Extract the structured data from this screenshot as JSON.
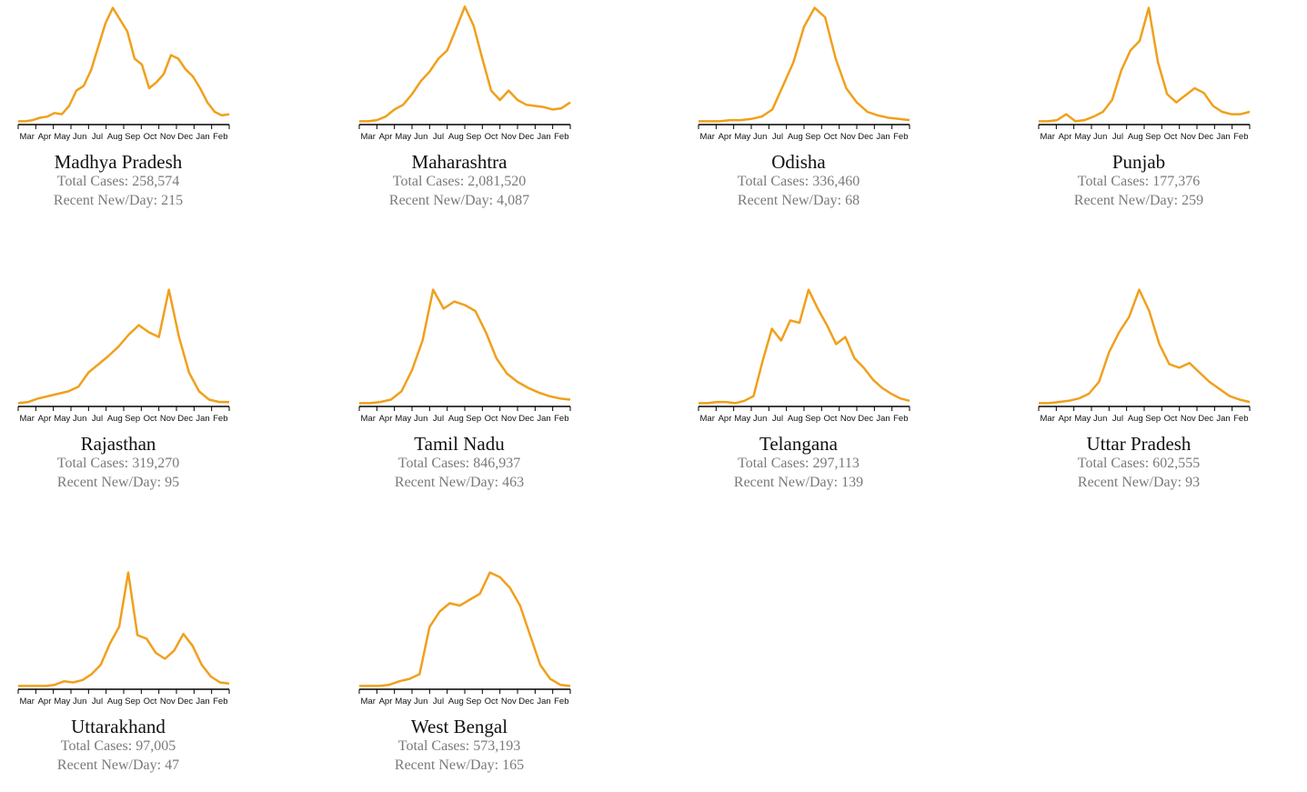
{
  "labels": {
    "total_prefix": "Total Cases: ",
    "recent_prefix": "Recent New/Day: "
  },
  "colors": {
    "line": "#f0a01c",
    "axis": "#000000",
    "label": "#7a7a7a"
  },
  "panels": [
    {
      "name": "Madhya Pradesh",
      "total": "Total Cases: 258,574",
      "recent": "Recent New/Day: 215"
    },
    {
      "name": "Maharashtra",
      "total": "Total Cases: 2,081,520",
      "recent": "Recent New/Day: 4,087"
    },
    {
      "name": "Odisha",
      "total": "Total Cases: 336,460",
      "recent": "Recent New/Day: 68"
    },
    {
      "name": "Punjab",
      "total": "Total Cases: 177,376",
      "recent": "Recent New/Day: 259"
    },
    {
      "name": "Rajasthan",
      "total": "Total Cases: 319,270",
      "recent": "Recent New/Day: 95"
    },
    {
      "name": "Tamil Nadu",
      "total": "Total Cases: 846,937",
      "recent": "Recent New/Day: 463"
    },
    {
      "name": "Telangana",
      "total": "Total Cases: 297,113",
      "recent": "Recent New/Day: 139"
    },
    {
      "name": "Uttar Pradesh",
      "total": "Total Cases: 602,555",
      "recent": "Recent New/Day: 93"
    },
    {
      "name": "Uttarakhand",
      "total": "Total Cases: 97,005",
      "recent": "Recent New/Day: 47"
    },
    {
      "name": "West Bengal",
      "total": "Total Cases: 573,193",
      "recent": "Recent New/Day: 165"
    }
  ],
  "chart_data": {
    "type": "line",
    "x_tick_labels": [
      "Mar",
      "Apr",
      "May",
      "Jun",
      "Jul",
      "Aug",
      "Sep",
      "Oct",
      "Nov",
      "Dec",
      "Jan",
      "Feb"
    ],
    "y_scale": "each panel normalized to its own peak",
    "series": [
      {
        "name": "Madhya Pradesh",
        "values": [
          0.02,
          0.02,
          0.03,
          0.05,
          0.06,
          0.09,
          0.08,
          0.15,
          0.28,
          0.32,
          0.45,
          0.65,
          0.85,
          0.98,
          0.88,
          0.78,
          0.55,
          0.5,
          0.3,
          0.35,
          0.42,
          0.58,
          0.55,
          0.46,
          0.4,
          0.3,
          0.18,
          0.1,
          0.07,
          0.08
        ]
      },
      {
        "name": "Maharashtra",
        "values": [
          0.02,
          0.02,
          0.03,
          0.06,
          0.12,
          0.16,
          0.25,
          0.36,
          0.44,
          0.55,
          0.62,
          0.8,
          0.99,
          0.83,
          0.55,
          0.28,
          0.2,
          0.28,
          0.2,
          0.16,
          0.15,
          0.14,
          0.12,
          0.13,
          0.18
        ]
      },
      {
        "name": "Odisha",
        "values": [
          0.02,
          0.02,
          0.02,
          0.03,
          0.03,
          0.04,
          0.06,
          0.12,
          0.32,
          0.52,
          0.82,
          0.98,
          0.9,
          0.55,
          0.3,
          0.18,
          0.1,
          0.07,
          0.05,
          0.04,
          0.03
        ]
      },
      {
        "name": "Punjab",
        "values": [
          0.02,
          0.02,
          0.03,
          0.08,
          0.02,
          0.03,
          0.06,
          0.1,
          0.2,
          0.45,
          0.62,
          0.7,
          0.98,
          0.52,
          0.25,
          0.18,
          0.24,
          0.3,
          0.26,
          0.15,
          0.1,
          0.08,
          0.08,
          0.1
        ]
      },
      {
        "name": "Rajasthan",
        "values": [
          0.02,
          0.03,
          0.06,
          0.08,
          0.1,
          0.12,
          0.16,
          0.28,
          0.35,
          0.42,
          0.5,
          0.6,
          0.68,
          0.62,
          0.58,
          0.98,
          0.58,
          0.28,
          0.12,
          0.05,
          0.03,
          0.03
        ]
      },
      {
        "name": "Tamil Nadu",
        "values": [
          0.02,
          0.02,
          0.03,
          0.05,
          0.12,
          0.3,
          0.55,
          0.98,
          0.82,
          0.88,
          0.85,
          0.8,
          0.62,
          0.4,
          0.27,
          0.2,
          0.15,
          0.11,
          0.08,
          0.06,
          0.05
        ]
      },
      {
        "name": "Telangana",
        "values": [
          0.02,
          0.02,
          0.03,
          0.03,
          0.02,
          0.04,
          0.08,
          0.38,
          0.65,
          0.55,
          0.72,
          0.7,
          0.98,
          0.82,
          0.68,
          0.52,
          0.58,
          0.4,
          0.32,
          0.22,
          0.15,
          0.1,
          0.06,
          0.04
        ]
      },
      {
        "name": "Uttar Pradesh",
        "values": [
          0.02,
          0.02,
          0.03,
          0.04,
          0.06,
          0.1,
          0.2,
          0.45,
          0.62,
          0.75,
          0.98,
          0.8,
          0.52,
          0.35,
          0.32,
          0.36,
          0.28,
          0.2,
          0.14,
          0.08,
          0.05,
          0.03
        ]
      },
      {
        "name": "Uttarakhand",
        "values": [
          0.02,
          0.02,
          0.02,
          0.02,
          0.03,
          0.06,
          0.05,
          0.07,
          0.12,
          0.2,
          0.38,
          0.52,
          0.98,
          0.45,
          0.42,
          0.3,
          0.25,
          0.32,
          0.46,
          0.36,
          0.2,
          0.1,
          0.05,
          0.04
        ]
      },
      {
        "name": "West Bengal",
        "values": [
          0.02,
          0.02,
          0.02,
          0.03,
          0.06,
          0.08,
          0.12,
          0.52,
          0.65,
          0.72,
          0.7,
          0.75,
          0.8,
          0.98,
          0.94,
          0.85,
          0.7,
          0.45,
          0.2,
          0.08,
          0.03,
          0.02
        ]
      }
    ]
  }
}
